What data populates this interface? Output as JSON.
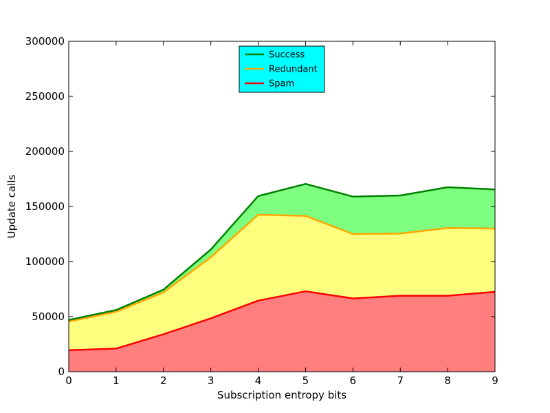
{
  "chart_data": {
    "type": "area",
    "stacked": true,
    "xlabel": "Subscription entropy bits",
    "ylabel": "Update calls",
    "xlim": [
      0,
      9
    ],
    "ylim": [
      0,
      300000
    ],
    "x": [
      0,
      1,
      2,
      3,
      4,
      5,
      6,
      7,
      8,
      9
    ],
    "xticks": [
      "0",
      "1",
      "2",
      "3",
      "4",
      "5",
      "6",
      "7",
      "8",
      "9"
    ],
    "yticks": [
      "0",
      "50000",
      "100000",
      "150000",
      "200000",
      "250000",
      "300000"
    ],
    "series": [
      {
        "name": "Spam",
        "line_color": "#ff0000",
        "fill_color": "#ff7f7f",
        "values": [
          19500,
          21000,
          34000,
          48500,
          64500,
          73000,
          66500,
          69000,
          69000,
          72500
        ]
      },
      {
        "name": "Redundant",
        "line_color": "#ffa500",
        "fill_color": "#ffff7f",
        "values": [
          26000,
          33500,
          38000,
          55500,
          78000,
          68500,
          58500,
          56500,
          61500,
          57500
        ]
      },
      {
        "name": "Success",
        "line_color": "#008000",
        "fill_color": "#7fff7f",
        "values": [
          1500,
          1500,
          2500,
          7000,
          17000,
          29000,
          34000,
          34500,
          37000,
          35500
        ]
      }
    ],
    "legend": {
      "position": "top-center",
      "background": "#00ffff",
      "entries": [
        "Success",
        "Redundant",
        "Spam"
      ]
    },
    "grid": false
  }
}
